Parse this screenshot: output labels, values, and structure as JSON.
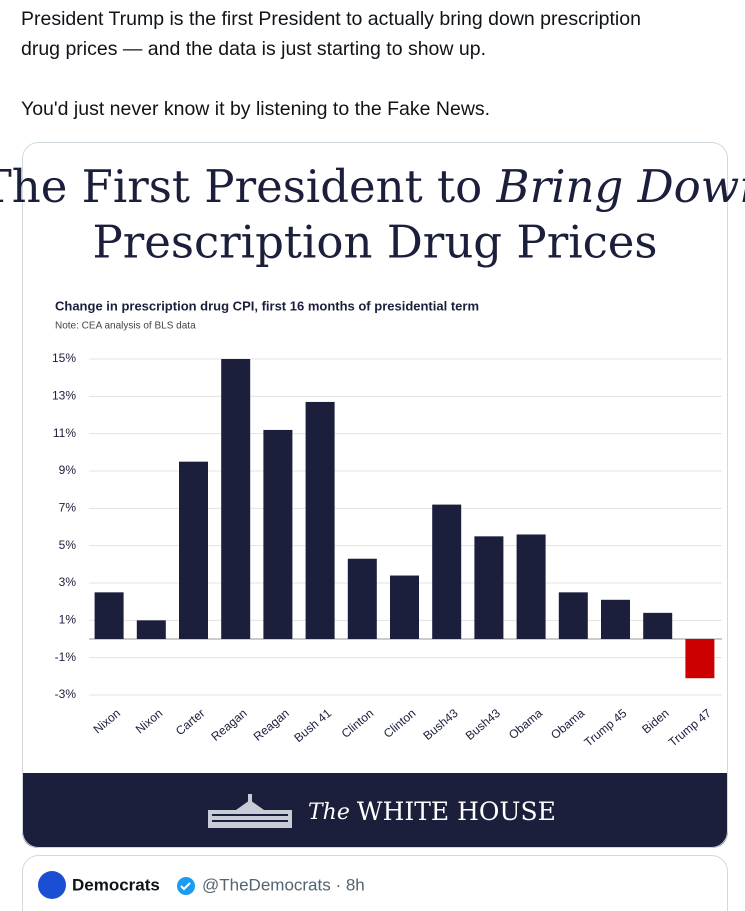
{
  "tweet": {
    "lines": [
      "President Trump is the first President to actually bring down prescription",
      "drug prices — and the data is just starting to show up.",
      "You'd just never know it by listening to the Fake News."
    ]
  },
  "chart_data": {
    "type": "bar",
    "title": "The First President to",
    "title_emphasis": "Bring Down",
    "title_line2": "Prescription Drug Prices",
    "subtitle": "Change in prescription drug CPI, first 16 months of presidential term",
    "note": "Note: CEA analysis of BLS data",
    "categories": [
      "Nixon",
      "Nixon",
      "Carter",
      "Reagan",
      "Reagan",
      "Bush 41",
      "Clinton",
      "Clinton",
      "Bush43",
      "Bush43",
      "Obama",
      "Obama",
      "Trump 45",
      "Biden",
      "Trump 47"
    ],
    "values": [
      2.5,
      1.0,
      9.5,
      15.0,
      11.2,
      12.7,
      4.3,
      3.4,
      7.2,
      5.5,
      5.6,
      2.5,
      2.1,
      1.4,
      -2.1
    ],
    "colors": [
      "#1b1f3b",
      "#1b1f3b",
      "#1b1f3b",
      "#1b1f3b",
      "#1b1f3b",
      "#1b1f3b",
      "#1b1f3b",
      "#1b1f3b",
      "#1b1f3b",
      "#1b1f3b",
      "#1b1f3b",
      "#1b1f3b",
      "#1b1f3b",
      "#1b1f3b",
      "#cc0000"
    ],
    "ylim": [
      -3,
      15
    ],
    "yticks": [
      {
        "value": 15,
        "label": "15%"
      },
      {
        "value": 13,
        "label": "13%"
      },
      {
        "value": 11,
        "label": "11%"
      },
      {
        "value": 9,
        "label": "9%"
      },
      {
        "value": 7,
        "label": "7%"
      },
      {
        "value": 5,
        "label": "5%"
      },
      {
        "value": 3,
        "label": "3%"
      },
      {
        "value": 1,
        "label": "1%"
      },
      {
        "value": -1,
        "label": "-1%"
      },
      {
        "value": -3,
        "label": "-3%"
      }
    ],
    "grid": true
  },
  "footer": {
    "logo_the": "The",
    "logo_name": "WHITE HOUSE"
  },
  "quote": {
    "name": "Democrats",
    "meta": "@TheDemocrats · 8h"
  }
}
